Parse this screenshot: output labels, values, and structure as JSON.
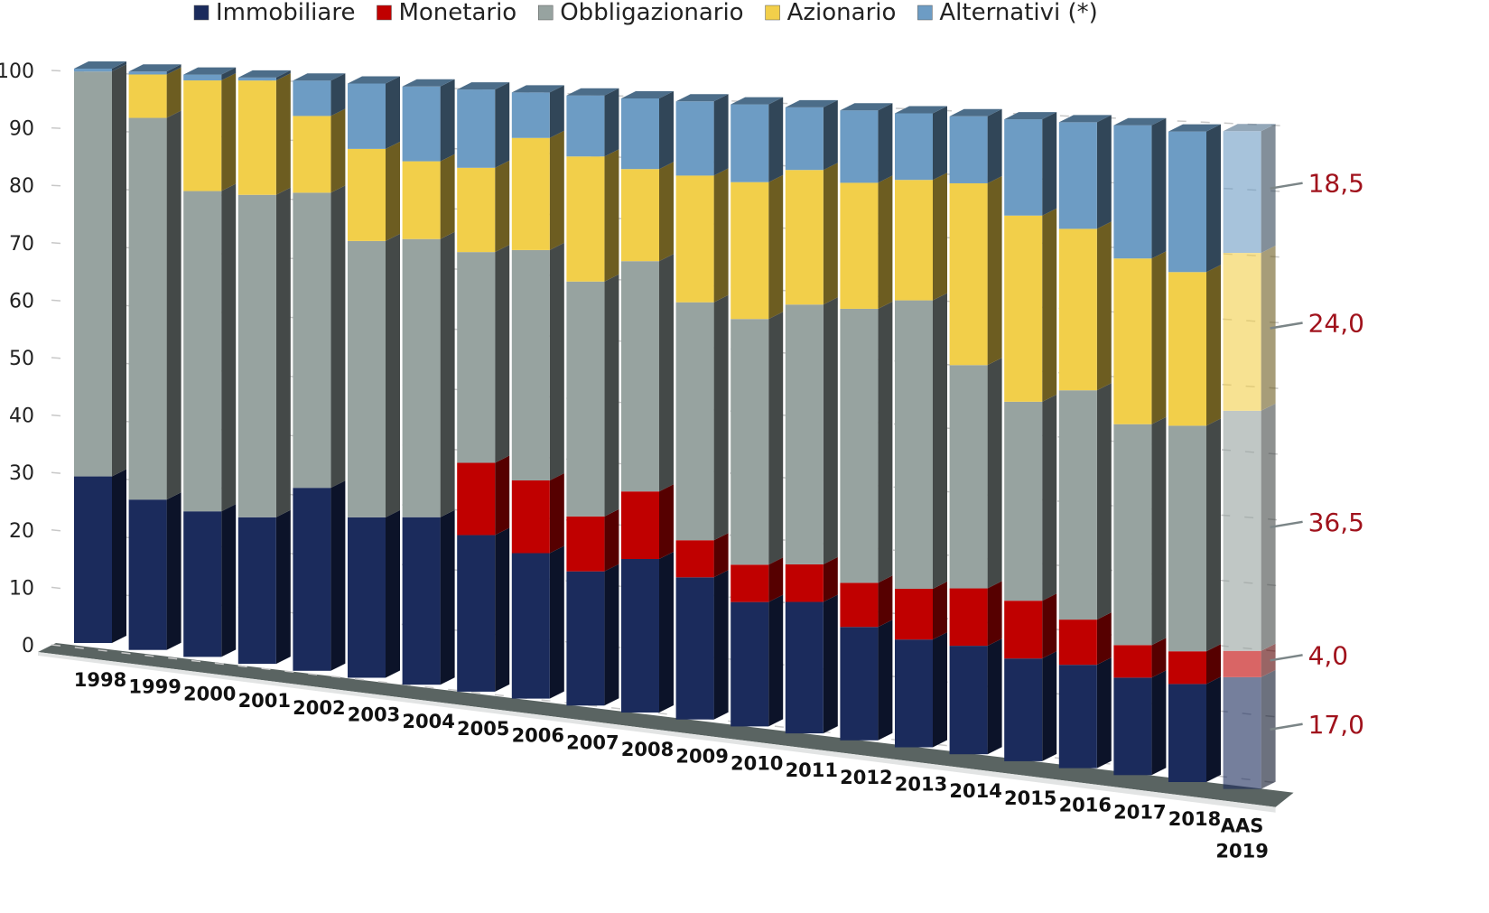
{
  "chart_data": {
    "type": "bar",
    "stacked": true,
    "style": "3d",
    "legend_position": "top",
    "grid": true,
    "ylim": [
      0,
      100
    ],
    "yticks": [
      "0",
      "10",
      "20",
      "30",
      "40",
      "50",
      "60",
      "70",
      "80",
      "90",
      "100"
    ],
    "categories": [
      "1998",
      "1999",
      "2000",
      "2001",
      "2002",
      "2003",
      "2004",
      "2005",
      "2006",
      "2007",
      "2008",
      "2009",
      "2010",
      "2011",
      "2012",
      "2013",
      "2014",
      "2015",
      "2016",
      "2017",
      "2018",
      "AAS 2019"
    ],
    "series": [
      {
        "name": "Immobiliare",
        "color": "#1b2b5c",
        "values": [
          29,
          26,
          25,
          25,
          31,
          27,
          28,
          26,
          24,
          22,
          25,
          23,
          20,
          21,
          18,
          17,
          17,
          16,
          16,
          15,
          15,
          17
        ]
      },
      {
        "name": "Monetario",
        "color": "#c00000",
        "values": [
          0,
          0,
          0,
          0,
          0,
          0,
          0,
          12,
          12,
          9,
          11,
          6,
          6,
          6,
          7,
          8,
          9,
          9,
          7,
          5,
          5,
          4
        ]
      },
      {
        "name": "Obbligazionario",
        "color": "#97a3a0",
        "values": [
          70.5,
          66,
          55,
          55,
          50,
          46.5,
          46.5,
          35,
          38,
          38.5,
          37.5,
          38.5,
          39.5,
          41.5,
          43.5,
          45.5,
          35,
          31,
          35.5,
          34,
          34.5,
          36.5
        ]
      },
      {
        "name": "Azionario",
        "color": "#f2cf4a",
        "values": [
          0,
          7.5,
          19,
          19.5,
          13,
          15.5,
          13,
          14,
          18.5,
          20.5,
          15,
          20.5,
          22,
          21.5,
          20,
          19,
          28.5,
          29,
          25,
          25.5,
          23.5,
          24
        ]
      },
      {
        "name": "Alternativi (*)",
        "color": "#6d9cc4",
        "values": [
          0.5,
          0.5,
          1,
          0.5,
          6,
          11,
          12.5,
          13,
          7.5,
          10,
          11.5,
          12,
          12.5,
          10,
          11.5,
          10.5,
          10.5,
          15,
          16.5,
          20.5,
          21.5,
          18.5
        ]
      }
    ],
    "annotations": [
      "17,0",
      "4,0",
      "36,5",
      "24,0",
      "18,5"
    ]
  }
}
